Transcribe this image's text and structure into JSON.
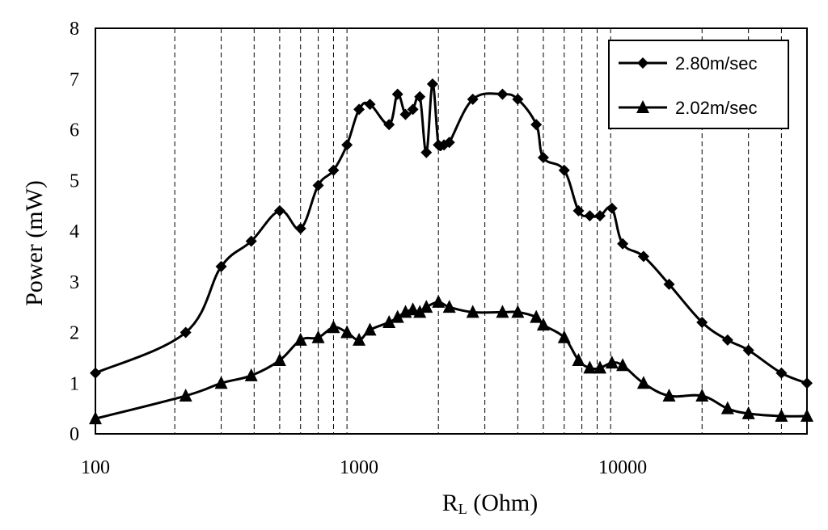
{
  "chart_data": {
    "type": "line",
    "title": "",
    "xlabel": "RL (Ohm)",
    "xlabel_main": "R",
    "xlabel_sub": "L",
    "xlabel_rest": " (Ohm)",
    "ylabel": "Power (mW)",
    "x_scale": "log",
    "xlim": [
      100,
      50000
    ],
    "ylim": [
      0,
      8
    ],
    "x_ticks": [
      "100",
      "1000",
      "10000"
    ],
    "y_ticks": [
      "0",
      "1",
      "2",
      "3",
      "4",
      "5",
      "6",
      "7",
      "8"
    ],
    "grid": "vertical dashed at each decade subdivision",
    "legend_position": "top-right",
    "series": [
      {
        "name": "2.80m/sec",
        "marker": "diamond",
        "x": [
          100,
          220,
          300,
          390,
          500,
          600,
          700,
          800,
          900,
          1000,
          1100,
          1300,
          1400,
          1500,
          1600,
          1700,
          1800,
          1900,
          2000,
          2100,
          2200,
          2700,
          3500,
          4000,
          4700,
          5000,
          6000,
          6800,
          7500,
          8200,
          9100,
          10000,
          12000,
          15000,
          20000,
          25000,
          30000,
          40000,
          50000
        ],
        "y": [
          1.2,
          2.0,
          3.3,
          3.8,
          4.4,
          4.05,
          4.9,
          5.2,
          5.7,
          6.4,
          6.5,
          6.1,
          6.7,
          6.3,
          6.4,
          6.65,
          5.55,
          6.9,
          5.7,
          5.7,
          5.75,
          6.6,
          6.7,
          6.6,
          6.1,
          5.45,
          5.2,
          4.4,
          4.3,
          4.3,
          4.45,
          3.75,
          3.5,
          2.95,
          2.2,
          1.85,
          1.65,
          1.2,
          1.0
        ]
      },
      {
        "name": "2.02m/sec",
        "marker": "triangle",
        "x": [
          100,
          220,
          300,
          390,
          500,
          600,
          700,
          800,
          900,
          1000,
          1100,
          1300,
          1400,
          1500,
          1600,
          1700,
          1800,
          2000,
          2200,
          2700,
          3500,
          4000,
          4700,
          5000,
          6000,
          6800,
          7500,
          8200,
          9100,
          10000,
          12000,
          15000,
          20000,
          25000,
          30000,
          40000,
          50000
        ],
        "y": [
          0.3,
          0.75,
          1.0,
          1.15,
          1.45,
          1.85,
          1.9,
          2.1,
          2.0,
          1.85,
          2.05,
          2.2,
          2.3,
          2.4,
          2.45,
          2.4,
          2.5,
          2.6,
          2.5,
          2.4,
          2.4,
          2.4,
          2.3,
          2.15,
          1.9,
          1.45,
          1.3,
          1.3,
          1.4,
          1.35,
          1.0,
          0.75,
          0.75,
          0.5,
          0.4,
          0.35,
          0.35
        ]
      }
    ]
  }
}
